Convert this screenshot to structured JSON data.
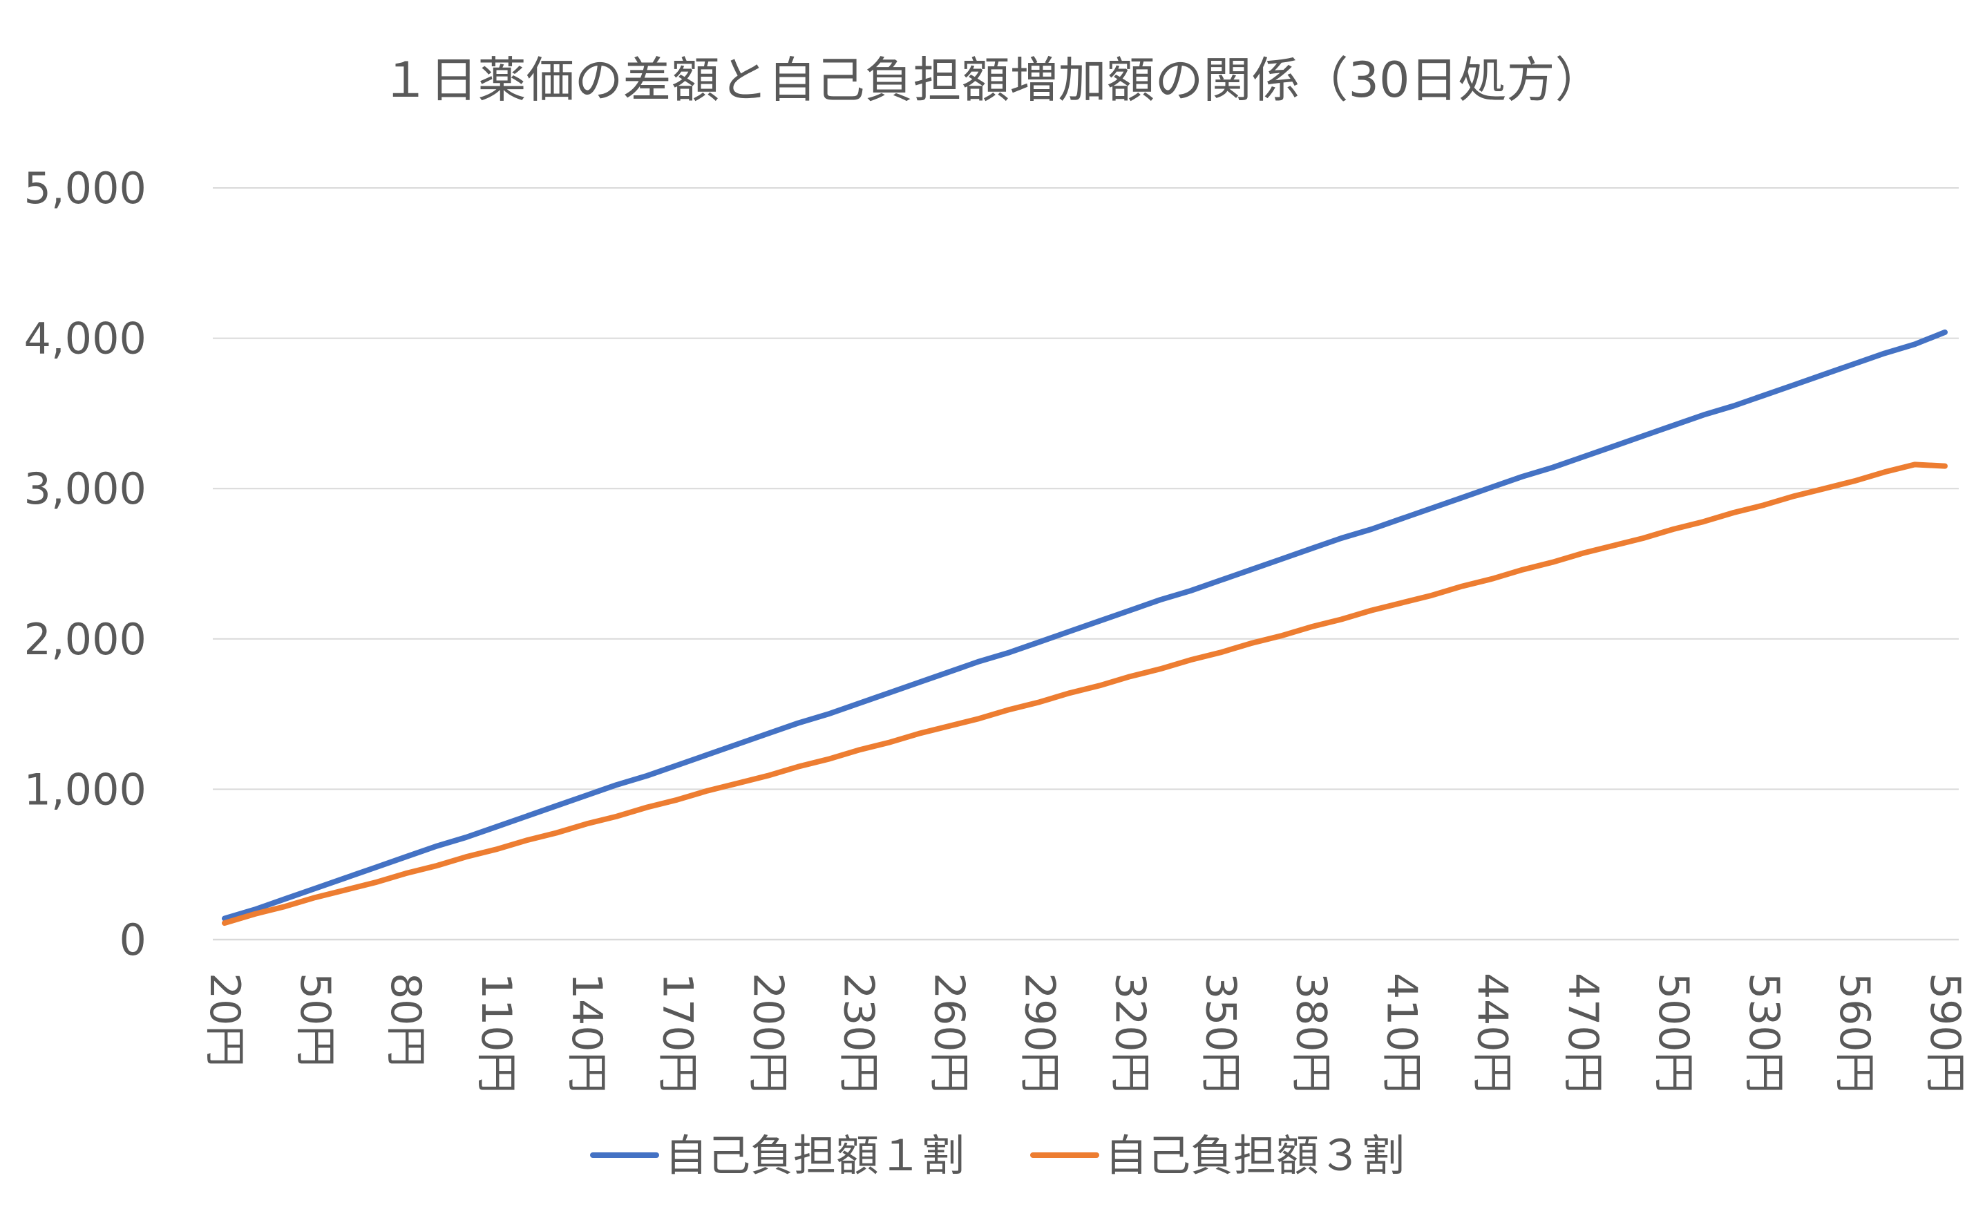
{
  "chart_data": {
    "type": "line",
    "title": "１日薬価の差額と自己負担額増加額の関係（30日処方）",
    "xlabel": "",
    "ylabel": "",
    "ylim": [
      0,
      5000
    ],
    "yticks": [
      "0",
      "1,000",
      "2,000",
      "3,000",
      "4,000",
      "5,000"
    ],
    "ytick_values": [
      0,
      1000,
      2000,
      3000,
      4000,
      5000
    ],
    "grid": true,
    "legend_position": "bottom",
    "categories": [
      "20円",
      "30円",
      "40円",
      "50円",
      "60円",
      "70円",
      "80円",
      "90円",
      "100円",
      "110円",
      "120円",
      "130円",
      "140円",
      "150円",
      "160円",
      "170円",
      "180円",
      "190円",
      "200円",
      "210円",
      "220円",
      "230円",
      "240円",
      "250円",
      "260円",
      "270円",
      "280円",
      "290円",
      "300円",
      "310円",
      "320円",
      "330円",
      "340円",
      "350円",
      "360円",
      "370円",
      "380円",
      "390円",
      "400円",
      "410円",
      "420円",
      "430円",
      "440円",
      "450円",
      "460円",
      "470円",
      "480円",
      "490円",
      "500円",
      "510円",
      "520円",
      "530円",
      "540円",
      "550円",
      "560円",
      "570円",
      "580円",
      "590円"
    ],
    "x_tick_labels": [
      "20円",
      "50円",
      "80円",
      "110円",
      "140円",
      "170円",
      "200円",
      "230円",
      "260円",
      "290円",
      "320円",
      "350円",
      "380円",
      "410円",
      "440円",
      "470円",
      "500円",
      "530円",
      "560円",
      "590円"
    ],
    "series": [
      {
        "name": "自己負担額１割",
        "color": "#4472c4",
        "values": [
          140,
          200,
          270,
          340,
          410,
          480,
          550,
          620,
          680,
          750,
          820,
          890,
          960,
          1030,
          1090,
          1160,
          1230,
          1300,
          1370,
          1440,
          1500,
          1570,
          1640,
          1710,
          1780,
          1850,
          1910,
          1980,
          2050,
          2120,
          2190,
          2260,
          2320,
          2390,
          2460,
          2530,
          2600,
          2670,
          2730,
          2800,
          2870,
          2940,
          3010,
          3080,
          3140,
          3210,
          3280,
          3350,
          3420,
          3490,
          3550,
          3620,
          3690,
          3760,
          3830,
          3900,
          3960,
          4040
        ]
      },
      {
        "name": "自己負担額３割",
        "color": "#ed7d31",
        "values": [
          110,
          170,
          220,
          280,
          330,
          380,
          440,
          490,
          550,
          600,
          660,
          710,
          770,
          820,
          880,
          930,
          990,
          1040,
          1090,
          1150,
          1200,
          1260,
          1310,
          1370,
          1420,
          1470,
          1530,
          1580,
          1640,
          1690,
          1750,
          1800,
          1860,
          1910,
          1970,
          2020,
          2080,
          2130,
          2190,
          2240,
          2290,
          2350,
          2400,
          2460,
          2510,
          2570,
          2620,
          2670,
          2730,
          2780,
          2840,
          2890,
          2950,
          3000,
          3050,
          3110,
          3160,
          3150
        ]
      }
    ]
  }
}
